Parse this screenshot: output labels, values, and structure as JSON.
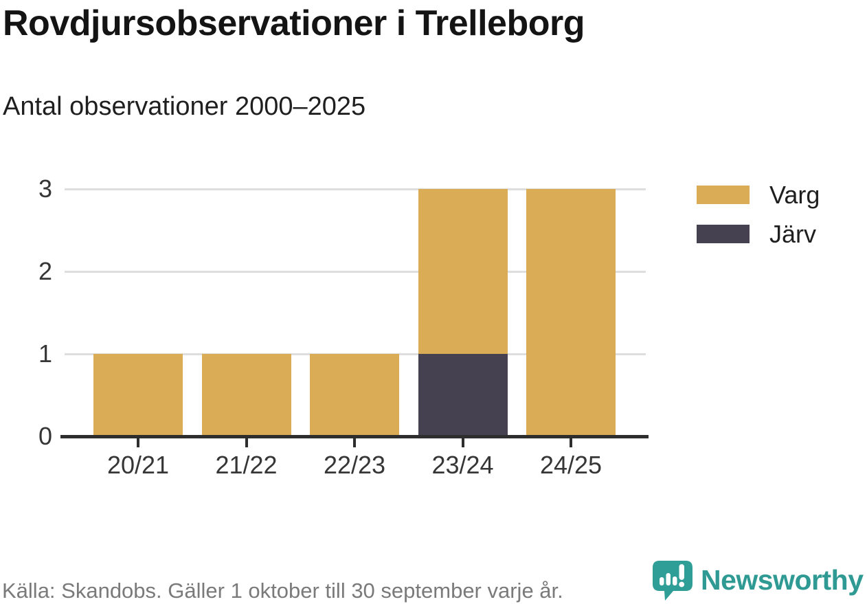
{
  "header": {
    "title": "Rovdjursobservationer i Trelleborg",
    "subtitle": "Antal observationer 2000–2025"
  },
  "chart_data": {
    "type": "bar",
    "stacked": true,
    "title": "Rovdjursobservationer i Trelleborg",
    "subtitle": "Antal observationer 2000–2025",
    "categories": [
      "20/21",
      "21/22",
      "22/23",
      "23/24",
      "24/25"
    ],
    "series": [
      {
        "name": "Varg",
        "color": "#d9ac55",
        "values": [
          1,
          1,
          1,
          2,
          3
        ]
      },
      {
        "name": "Järv",
        "color": "#454150",
        "values": [
          0,
          0,
          0,
          1,
          0
        ]
      }
    ],
    "stack_order_bottom_to_top": [
      "Järv",
      "Varg"
    ],
    "totals_per_category": [
      1,
      1,
      1,
      3,
      3
    ],
    "xlabel": "",
    "ylabel": "",
    "ylim": [
      0,
      3
    ],
    "yticks": [
      3,
      2,
      1,
      0
    ],
    "grid": "horizontal",
    "legend_position": "right"
  },
  "legend": {
    "items": [
      {
        "label": "Varg",
        "color": "#d9ac55"
      },
      {
        "label": "Järv",
        "color": "#454150"
      }
    ]
  },
  "footer": {
    "source_text": "Källa: Skandobs. Gäller 1 oktober till 30 september varje år.",
    "brand_name": "Newsworthy"
  },
  "colors": {
    "varg_gold": "#d9ac55",
    "jarv_slate": "#454150",
    "brand_teal": "#2f9a93",
    "grid_line": "#dedede",
    "axis_line": "#2e2e2e",
    "title_text": "#141414",
    "tick_text": "#363636",
    "muted_text": "#7a7a7a"
  },
  "icons": {
    "newsworthy_logo": "speech-bubble-with-bar-chart-and-exclamation"
  }
}
